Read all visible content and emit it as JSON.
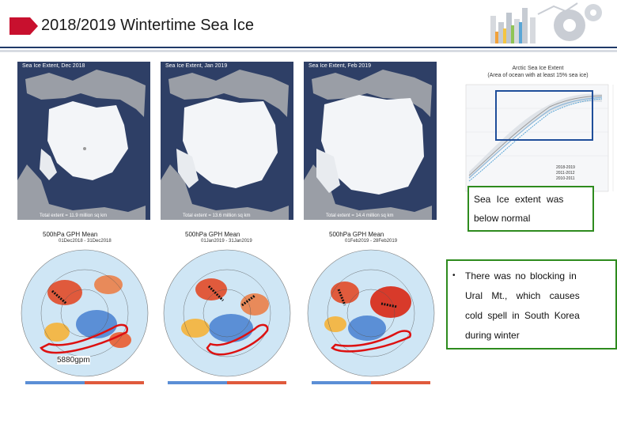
{
  "title": "2018/2019 Wintertime Sea Ice",
  "ice_maps": [
    {
      "header": "Sea Ice Extent, Dec 2018",
      "footer": "Total extent = 11.9 million sq km"
    },
    {
      "header": "Sea Ice Extent, Jan 2019",
      "footer": "Total extent = 13.6 million sq km"
    },
    {
      "header": "Sea Ice Extent, Feb 2019",
      "footer": "Total extent = 14.4 million sq km"
    }
  ],
  "extent_chart": {
    "title_line1": "Arctic Sea Ice Extent",
    "title_line2": "(Area of ocean with at least 15% sea ice)",
    "legend": [
      "2018-2019",
      "2011-2012",
      "2010-2011"
    ]
  },
  "gph_maps": [
    {
      "header": "500hPa GPH Mean",
      "period": "01Dec2018 - 31Dec2018"
    },
    {
      "header": "500hPa GPH Mean",
      "period": "01Jan2019 - 31Jan2019"
    },
    {
      "header": "500hPa GPH Mean",
      "period": "01Feb2019 - 28Feb2019"
    }
  ],
  "label_5880": "5880gpm",
  "note": {
    "line1": "Sea Ice extent was",
    "line2": "below normal"
  },
  "bullet": {
    "marker": "•",
    "line1": "There was no blocking in",
    "line2": "Ural Mt., which causes",
    "line3": "cold spell in South Korea",
    "line4": "during winter"
  },
  "colors": {
    "accent_red": "#c8102e",
    "title_rule": "#1f3a68",
    "box_green": "#2e8b1e",
    "ocean": "#2e3f66"
  }
}
